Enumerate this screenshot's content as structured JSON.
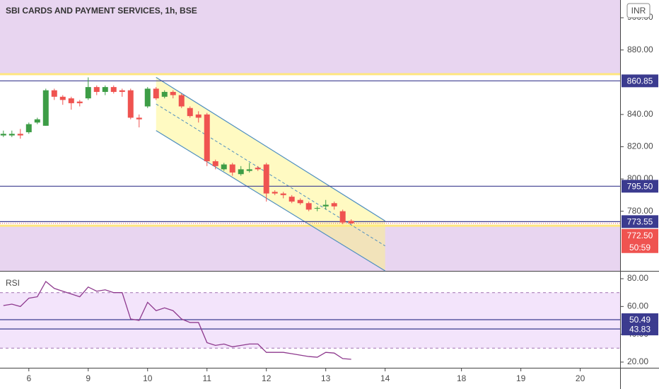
{
  "chart_data": [
    {
      "type": "candlestick",
      "title": "SBI CARDS AND PAYMENT SERVICES, 1h, BSE",
      "currency": "INR",
      "countdown": "50:59",
      "xlim": [
        -0.4,
        72.7
      ],
      "ylim": [
        743,
        911
      ],
      "yticks": [
        {
          "value": 780,
          "label": "780.00"
        },
        {
          "value": 800,
          "label": "800.00"
        },
        {
          "value": 820,
          "label": "820.00"
        },
        {
          "value": 840,
          "label": "840.00"
        },
        {
          "value": 880,
          "label": "880.00"
        },
        {
          "value": 900,
          "label": "900.00"
        }
      ],
      "up_color": "#3d9d46",
      "down_color": "#ef5350",
      "candles": {
        "open": [
          827,
          827,
          828,
          829,
          835,
          833,
          855,
          851,
          850,
          848,
          850,
          857,
          854,
          857,
          855,
          855,
          838,
          845,
          856,
          851,
          854,
          852,
          844,
          840,
          840,
          811,
          806,
          809,
          803,
          805,
          807,
          809,
          792,
          791,
          789,
          787,
          785,
          782,
          783,
          785,
          780,
          774
        ],
        "high": [
          830,
          830,
          831,
          835,
          838,
          856,
          856,
          852,
          851,
          849,
          863,
          858,
          858,
          858,
          856,
          856,
          840,
          857,
          857,
          855,
          855,
          853,
          845,
          842,
          841,
          812,
          810,
          810,
          808,
          810,
          808,
          810,
          793,
          792,
          790,
          788,
          786,
          783,
          787,
          786,
          781,
          775
        ],
        "low": [
          826,
          826,
          825,
          828,
          834,
          833,
          849,
          846,
          843,
          845,
          849,
          852,
          852,
          853,
          851,
          837,
          832,
          844,
          849,
          850,
          850,
          844,
          838,
          835,
          808,
          806,
          805,
          802,
          802,
          804,
          805,
          786,
          790,
          788,
          785,
          784,
          780,
          780,
          781,
          781,
          772,
          772
        ],
        "close": [
          828,
          828,
          827,
          834,
          837,
          855,
          851,
          849,
          847,
          847,
          857,
          854,
          857,
          854,
          854,
          838,
          837,
          856,
          850,
          854,
          852,
          845,
          839,
          838,
          811,
          808,
          809,
          804,
          806,
          806,
          806,
          791,
          791,
          790,
          786,
          785,
          781,
          782,
          784,
          783,
          773,
          772.5
        ]
      },
      "zones": [
        {
          "from": 865,
          "to": 911,
          "color": "#e8d5f0"
        },
        {
          "from": 743,
          "to": 771,
          "color": "#e8d5f0"
        }
      ],
      "channel": {
        "x": [
          18,
          45
        ],
        "upper": [
          863,
          774
        ],
        "lower": [
          830,
          743
        ],
        "color": "#4f8fc0"
      },
      "hlines": [
        860.85,
        {
          "value": 795.5,
          "label": "795.50"
        },
        773.55
      ],
      "hline_color": "#3b3b8f",
      "last_price": {
        "value": 772.5,
        "label": "772.50"
      }
    },
    {
      "type": "line",
      "title": "RSI",
      "xlim": [
        -0.4,
        72.7
      ],
      "ylim": [
        15.9,
        84.6
      ],
      "yticks": [
        {
          "value": 20,
          "label": "20.00"
        },
        {
          "value": 40,
          "label": "40.00"
        },
        {
          "value": 60,
          "label": "60.00"
        },
        {
          "value": 80,
          "label": "80.00"
        }
      ],
      "xticks": [
        {
          "value": 3,
          "label": "6"
        },
        {
          "value": 10,
          "label": "9"
        },
        {
          "value": 17,
          "label": "10"
        },
        {
          "value": 24,
          "label": "11"
        },
        {
          "value": 31,
          "label": "12"
        },
        {
          "value": 38,
          "label": "13"
        },
        {
          "value": 45,
          "label": "14"
        },
        {
          "value": 54,
          "label": "18"
        },
        {
          "value": 61,
          "label": "19"
        },
        {
          "value": 68,
          "label": "20"
        }
      ],
      "bands": [
        30,
        70
      ],
      "color": "#8e3a8e",
      "values": [
        60.7,
        61.7,
        60,
        66,
        67,
        78,
        73,
        71,
        69,
        67,
        74,
        71,
        72,
        70,
        70,
        51,
        50,
        63,
        57,
        59,
        57,
        51,
        48.5,
        48.5,
        34,
        32,
        33,
        31,
        32,
        33,
        33,
        27,
        27,
        27,
        26,
        25,
        24,
        23.5,
        27,
        26.5,
        22.5,
        22
      ],
      "hlines": [
        50.49,
        43.83
      ],
      "hline_color": "#3b3b8f"
    }
  ]
}
